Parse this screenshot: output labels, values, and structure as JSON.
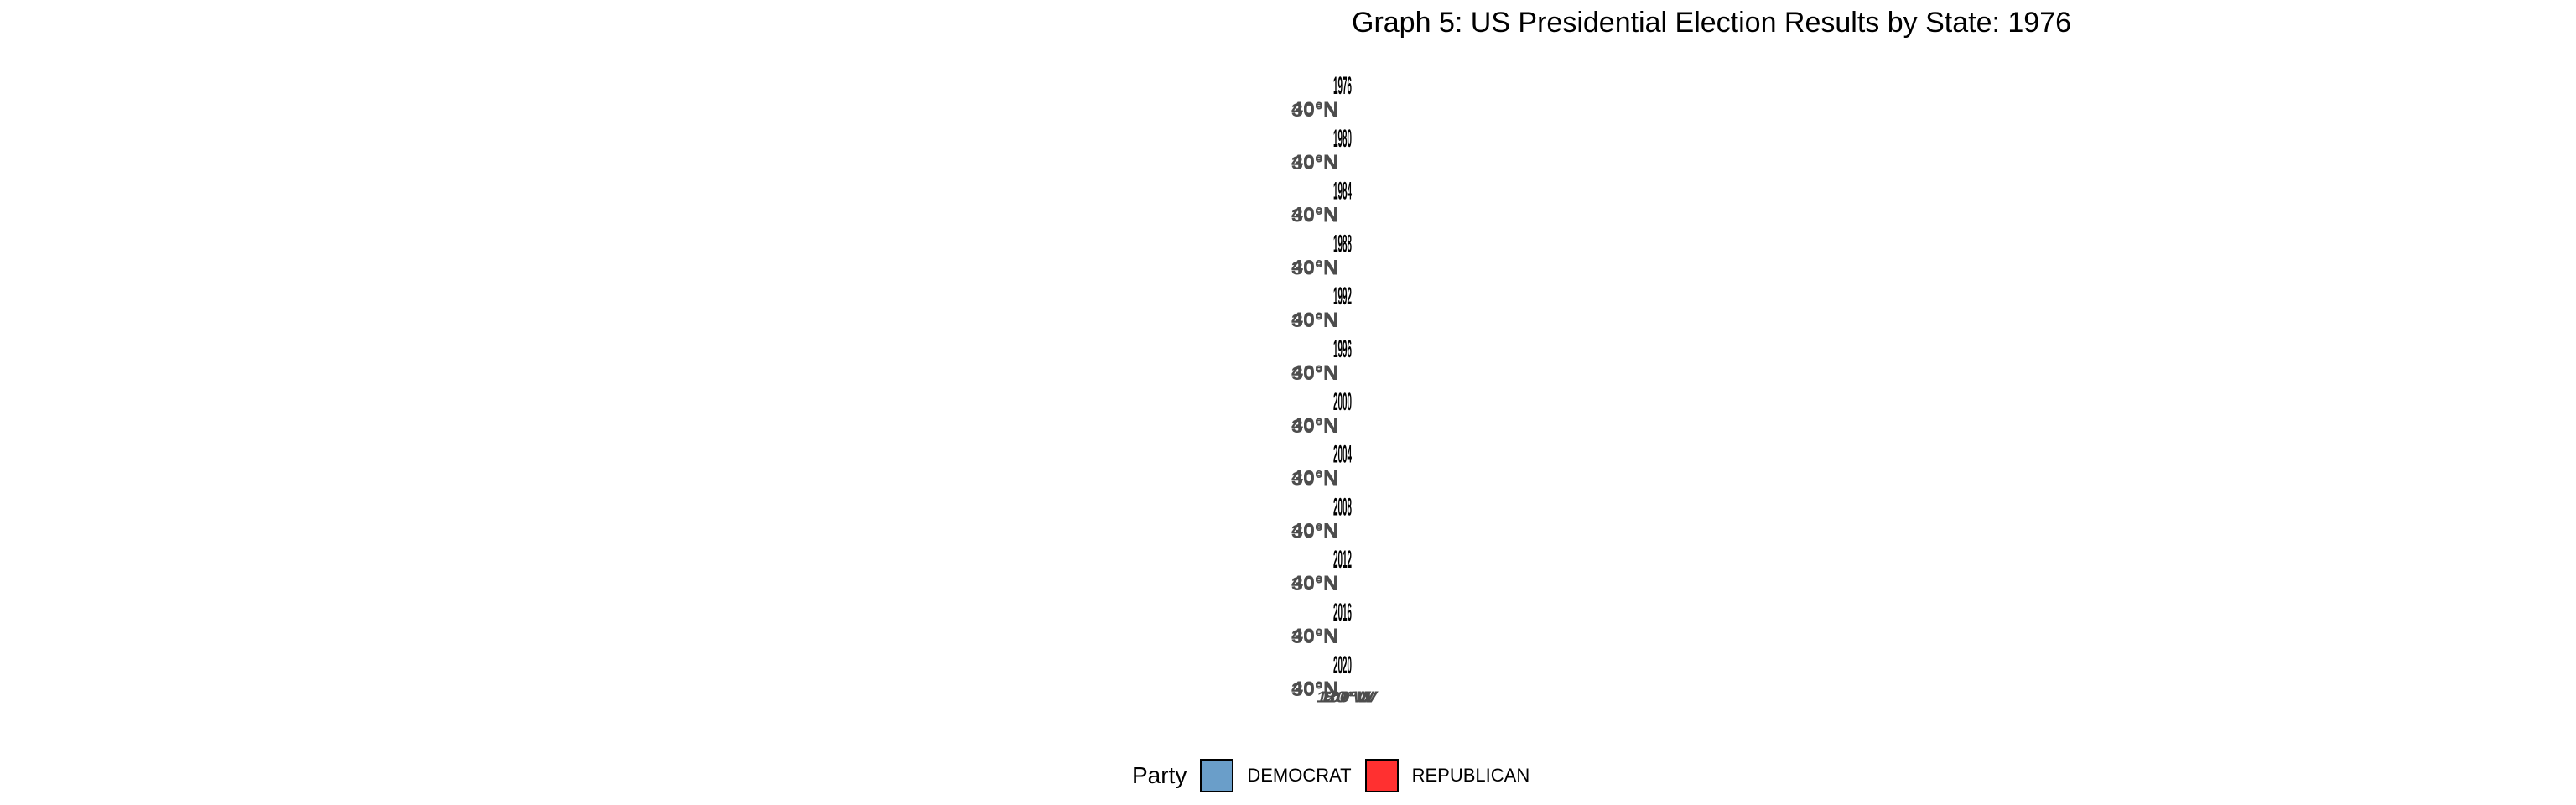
{
  "chart_data": {
    "type": "map",
    "title": "Graph 5: US Presidential Election Results by State: 1976",
    "legend": {
      "title": "Party",
      "placement": "bottom",
      "entries": [
        {
          "label": "DEMOCRAT",
          "color": "#6a9ec9"
        },
        {
          "label": "REPUBLICAN",
          "color": "#ff3030"
        }
      ]
    },
    "facets": [
      "1976",
      "1980",
      "1984",
      "1988",
      "1992",
      "1996",
      "2000",
      "2004",
      "2008",
      "2012",
      "2016",
      "2020"
    ],
    "y_tick_labels": [
      "40°N",
      "30°N"
    ],
    "x_tick_labels": [
      "120°W",
      "100°W",
      "80°W"
    ]
  }
}
